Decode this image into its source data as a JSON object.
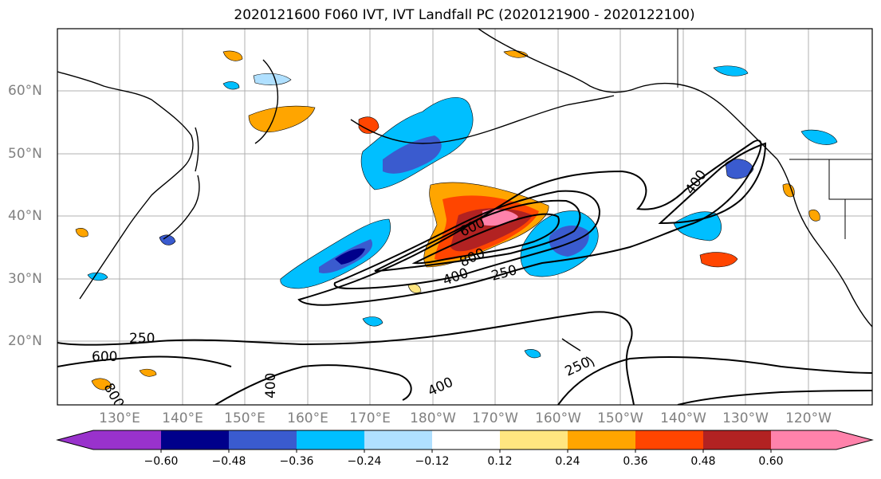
{
  "title": "2020121600 F060 IVT, IVT Landfall PC (2020121900 - 2020122100)",
  "lat_labels": [
    "60°N",
    "50°N",
    "40°N",
    "30°N",
    "20°N"
  ],
  "lon_labels": [
    "130°E",
    "140°E",
    "150°E",
    "160°E",
    "170°E",
    "180°W",
    "170°W",
    "160°W",
    "150°W",
    "140°W",
    "130°W",
    "120°W"
  ],
  "contour_labels": [
    "250",
    "600",
    "800",
    "400",
    "600",
    "800",
    "400",
    "250",
    "400",
    "250",
    "400"
  ],
  "colorbar": {
    "tick_labels": [
      "−0.60",
      "−0.48",
      "−0.36",
      "−0.24",
      "−0.12",
      "0.12",
      "0.24",
      "0.36",
      "0.48",
      "0.60"
    ],
    "colors": [
      "#9932cc",
      "#00008b",
      "#3a5bcf",
      "#00bfff",
      "#b0e0ff",
      "#ffffff",
      "#ffe680",
      "#ffa500",
      "#ff4500",
      "#b22222",
      "#ff82ab"
    ]
  }
}
